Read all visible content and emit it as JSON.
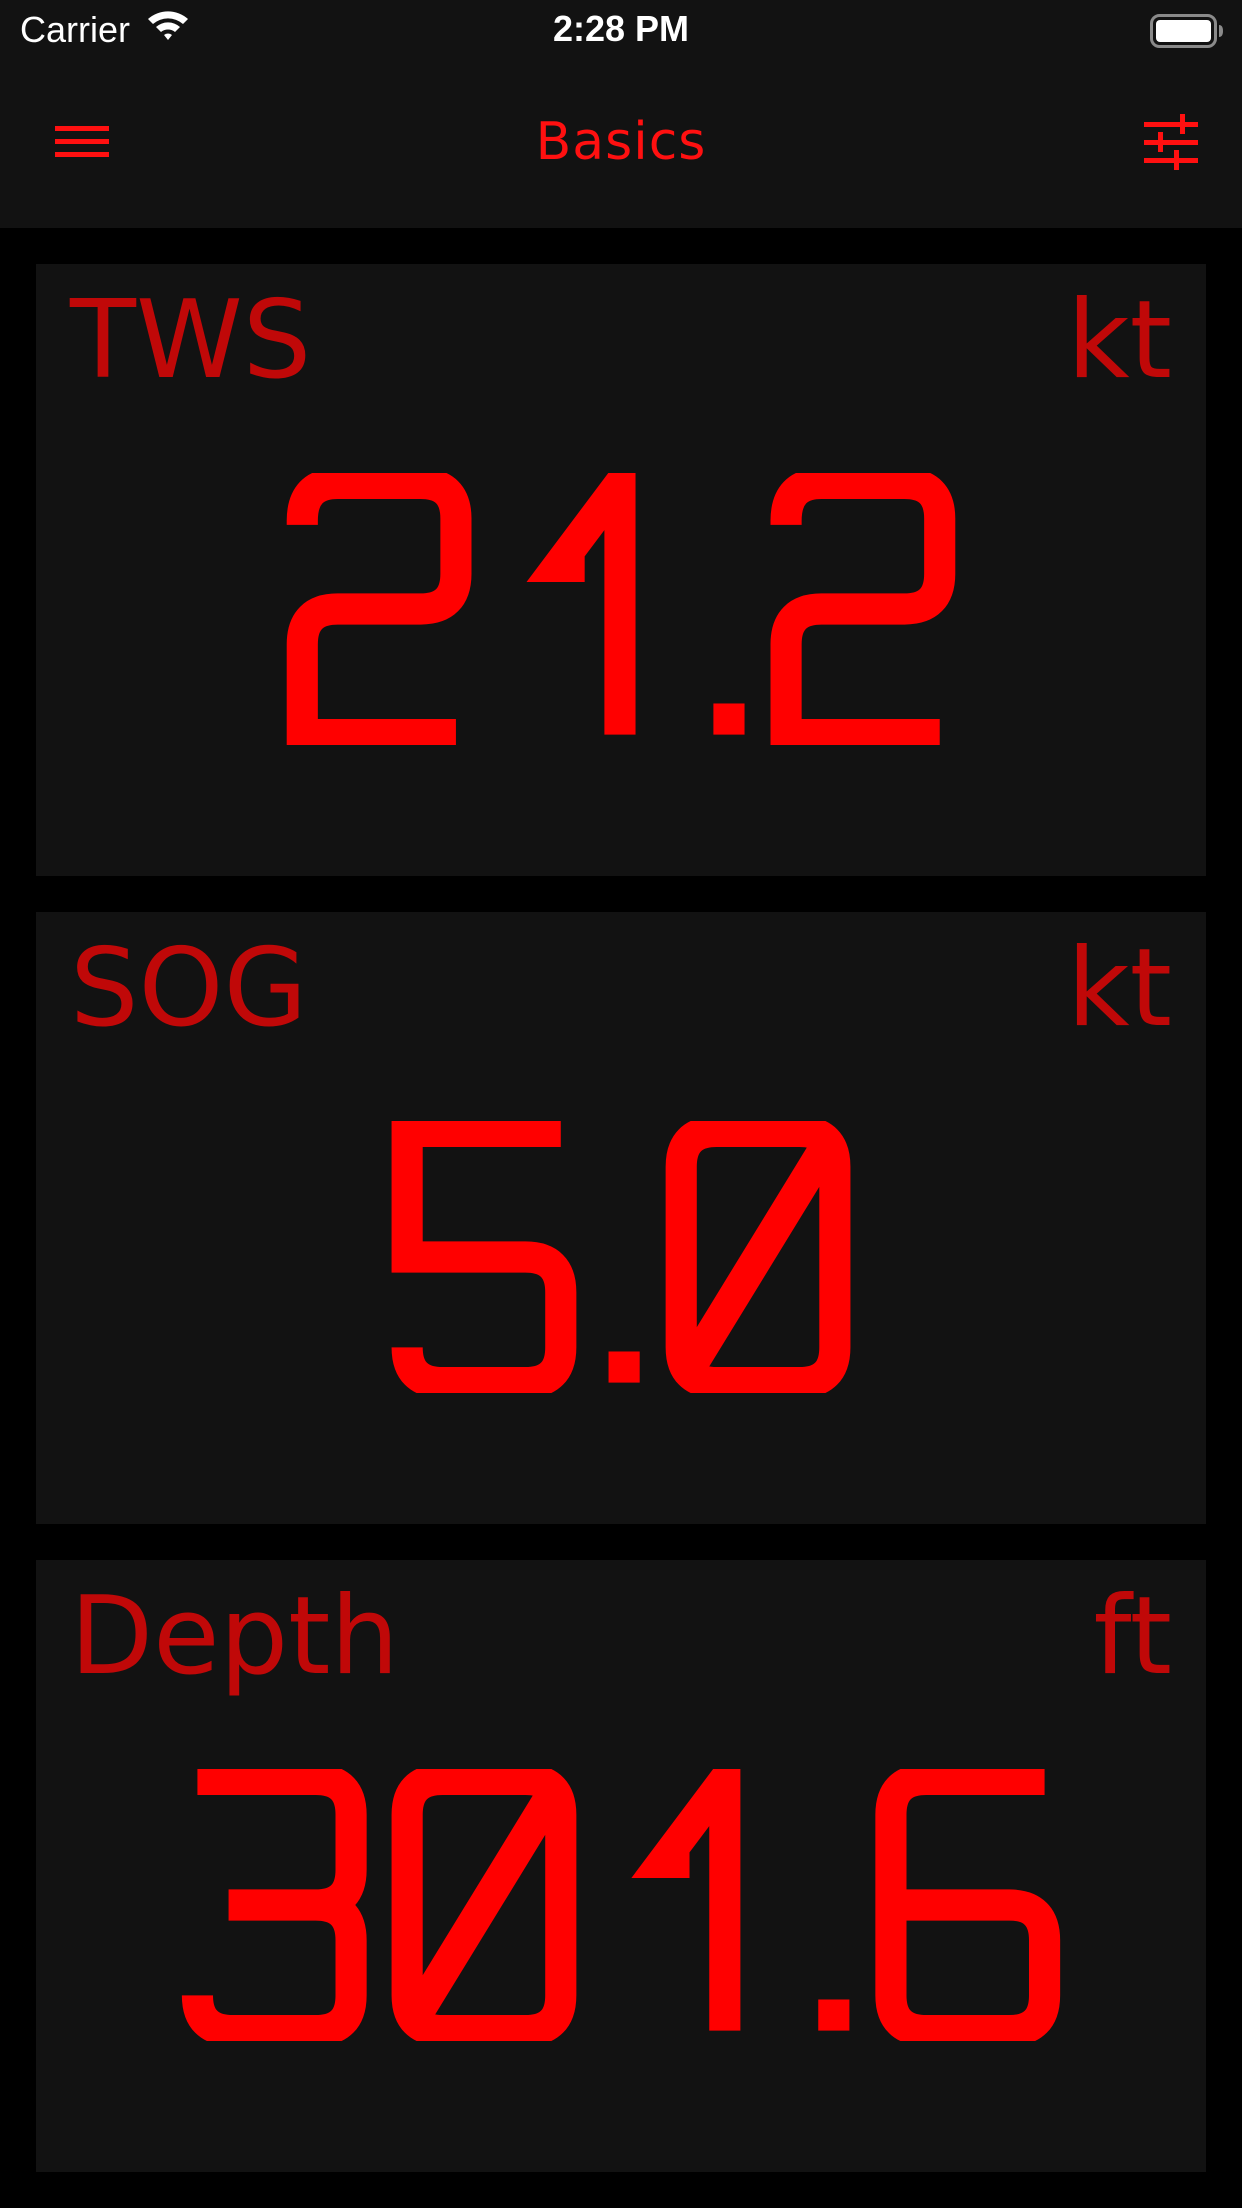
{
  "status_bar": {
    "carrier": "Carrier",
    "time": "2:28 PM",
    "wifi_icon": "wifi-icon",
    "battery_icon": "battery-icon"
  },
  "nav": {
    "title": "Basics",
    "menu_icon": "hamburger-menu-icon",
    "settings_icon": "sliders-settings-icon"
  },
  "theme": {
    "background": "#000000",
    "panel": "#121212",
    "value_color": "#ff0000",
    "label_color": "#c00808"
  },
  "panels": [
    {
      "label": "TWS",
      "unit": "kt",
      "value": "21.2"
    },
    {
      "label": "SOG",
      "unit": "kt",
      "value": "5.0"
    },
    {
      "label": "Depth",
      "unit": "ft",
      "value": "301.6"
    }
  ]
}
